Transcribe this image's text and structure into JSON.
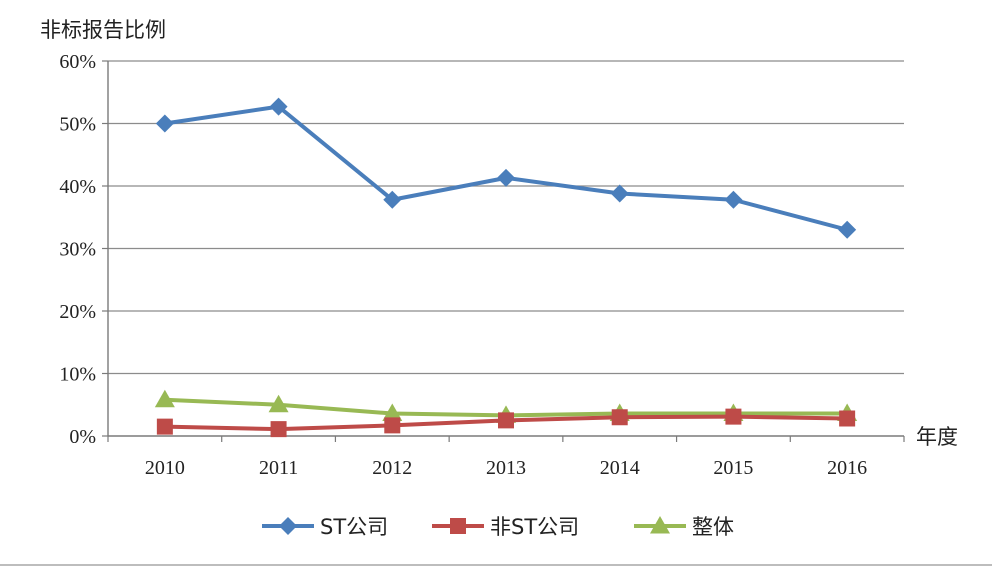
{
  "chart_data": {
    "type": "line",
    "title": "",
    "ylabel": "非标报告比例",
    "xlabel": "年度",
    "categories": [
      "2010",
      "2011",
      "2012",
      "2013",
      "2014",
      "2015",
      "2016"
    ],
    "ylim": [
      0,
      60
    ],
    "yticks": [
      "0%",
      "10%",
      "20%",
      "30%",
      "40%",
      "50%",
      "60%"
    ],
    "grid": true,
    "legend_position": "bottom",
    "series": [
      {
        "name": "ST公司",
        "color": "#4a7ebb",
        "marker": "diamond",
        "values": [
          50.0,
          52.7,
          37.8,
          41.3,
          38.8,
          37.8,
          33.0
        ]
      },
      {
        "name": "非ST公司",
        "color": "#be4b48",
        "marker": "square",
        "values": [
          1.5,
          1.1,
          1.7,
          2.5,
          3.0,
          3.1,
          2.8
        ]
      },
      {
        "name": "整体",
        "color": "#98b954",
        "marker": "triangle",
        "values": [
          5.8,
          5.0,
          3.6,
          3.3,
          3.6,
          3.6,
          3.6
        ]
      }
    ]
  }
}
